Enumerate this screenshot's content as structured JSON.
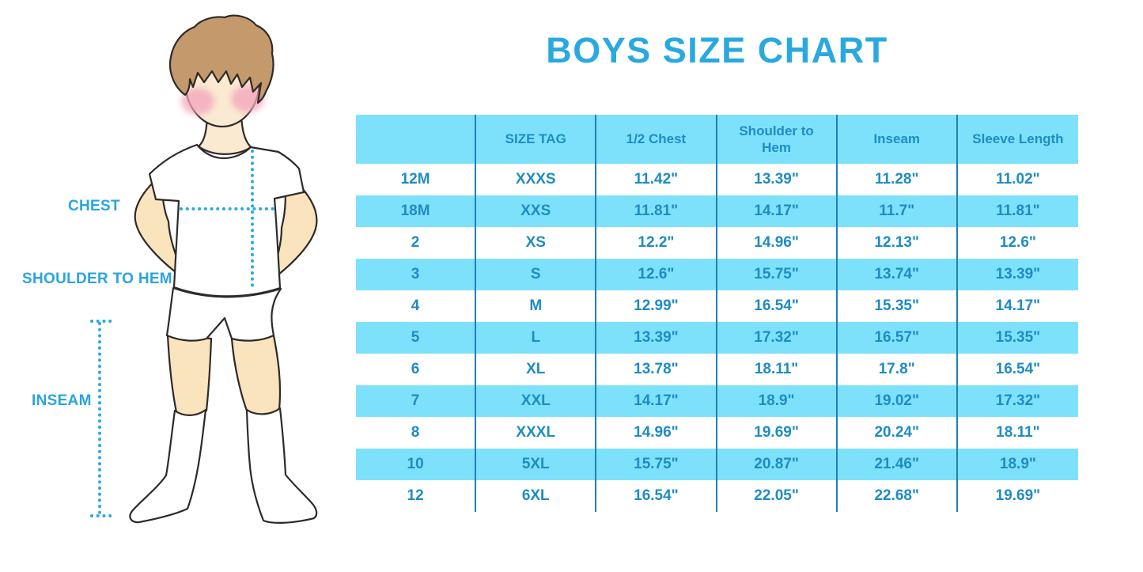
{
  "title": "BOYS SIZE CHART",
  "illustration": {
    "labels": {
      "chest": "CHEST",
      "shoulder_to_hem": "SHOULDER TO HEM",
      "inseam": "INSEAM"
    }
  },
  "colors": {
    "title_blue": "#29A9E0",
    "table_text_blue": "#1E8CC3",
    "band_cyan": "#7EE1FB",
    "grid_line_blue": "#1C81B4",
    "label_blue": "#29A5DC",
    "dotted_line_blue": "#2BAAE2",
    "skin": "#FAE4BE",
    "face_skin": "#FBEAD2",
    "hair_brown": "#C49A6C",
    "blush_pink": "#F2A3BB",
    "outline_dark": "#2E2A27"
  },
  "chart_data": {
    "type": "table",
    "title": "BOYS SIZE CHART",
    "columns": [
      "",
      "SIZE TAG",
      "1/2 Chest",
      "Shoulder to Hem",
      "Inseam",
      "Sleeve Length"
    ],
    "rows": [
      [
        "12M",
        "XXXS",
        "11.42\"",
        "13.39\"",
        "11.28\"",
        "11.02\""
      ],
      [
        "18M",
        "XXS",
        "11.81\"",
        "14.17\"",
        "11.7\"",
        "11.81\""
      ],
      [
        "2",
        "XS",
        "12.2\"",
        "14.96\"",
        "12.13\"",
        "12.6\""
      ],
      [
        "3",
        "S",
        "12.6\"",
        "15.75\"",
        "13.74\"",
        "13.39\""
      ],
      [
        "4",
        "M",
        "12.99\"",
        "16.54\"",
        "15.35\"",
        "14.17\""
      ],
      [
        "5",
        "L",
        "13.39\"",
        "17.32\"",
        "16.57\"",
        "15.35\""
      ],
      [
        "6",
        "XL",
        "13.78\"",
        "18.11\"",
        "17.8\"",
        "16.54\""
      ],
      [
        "7",
        "XXL",
        "14.17\"",
        "18.9\"",
        "19.02\"",
        "17.32\""
      ],
      [
        "8",
        "XXXL",
        "14.96\"",
        "19.69\"",
        "20.24\"",
        "18.11\""
      ],
      [
        "10",
        "5XL",
        "15.75\"",
        "20.87\"",
        "21.46\"",
        "18.9\""
      ],
      [
        "12",
        "6XL",
        "16.54\"",
        "22.05\"",
        "22.68\"",
        "19.69\""
      ]
    ],
    "layout": {
      "header_background": "cyan band",
      "row_banding": "alternating white and cyan, starting white",
      "column_separators": "vertical blue lines only, no horizontal borders"
    }
  }
}
